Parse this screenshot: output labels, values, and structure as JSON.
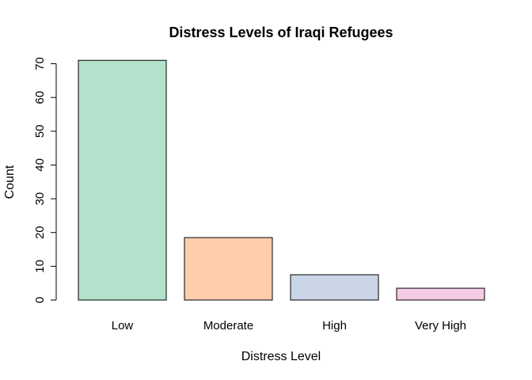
{
  "chart_data": {
    "type": "bar",
    "title": "Distress Levels of Iraqi Refugees",
    "xlabel": "Distress Level",
    "ylabel": "Count",
    "categories": [
      "Low",
      "Moderate",
      "High",
      "Very High"
    ],
    "values": [
      71,
      18.5,
      7.5,
      3.5
    ],
    "colors": [
      "#B3E2CD",
      "#FDCDAC",
      "#CBD5E8",
      "#F4CAE4"
    ],
    "ylim": [
      0,
      70
    ],
    "yticks": [
      "0",
      "10",
      "20",
      "30",
      "40",
      "50",
      "60",
      "70"
    ],
    "grid": false,
    "legend": "none"
  }
}
